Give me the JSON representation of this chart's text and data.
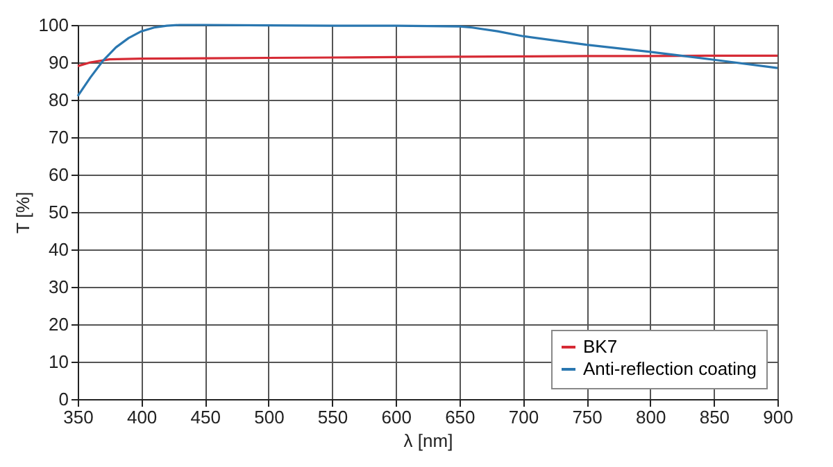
{
  "chart_data": {
    "type": "line",
    "xlabel": "λ [nm]",
    "ylabel": "T [%]",
    "xlim": [
      350,
      900
    ],
    "xticks": [
      350,
      400,
      450,
      500,
      550,
      600,
      650,
      700,
      750,
      800,
      850,
      900
    ],
    "ylim": [
      0,
      100
    ],
    "yticks": [
      0,
      10,
      20,
      30,
      40,
      50,
      60,
      70,
      80,
      90,
      100
    ],
    "grid": true,
    "legend": "bottom right",
    "line_style": "solid",
    "marker": "none",
    "series": [
      {
        "name": "BK7",
        "color": "#d62b35",
        "x": [
          350,
          360,
          375,
          400,
          450,
          500,
          550,
          600,
          650,
          700,
          750,
          800,
          850,
          900
        ],
        "values": [
          89,
          90,
          90.8,
          91,
          91.1,
          91.2,
          91.3,
          91.4,
          91.5,
          91.6,
          91.7,
          91.7,
          91.8,
          91.8
        ]
      },
      {
        "name": "Anti-reflection coating",
        "color": "#2a77b0",
        "x": [
          350,
          360,
          370,
          380,
          390,
          400,
          410,
          420,
          430,
          450,
          500,
          550,
          600,
          650,
          660,
          680,
          700,
          750,
          800,
          850,
          900
        ],
        "values": [
          81,
          86,
          90.5,
          94,
          96.5,
          98.3,
          99.3,
          99.8,
          100,
          100,
          99.9,
          99.8,
          99.8,
          99.6,
          99.3,
          98.3,
          97,
          94.7,
          92.8,
          90.7,
          88.5
        ]
      }
    ]
  }
}
